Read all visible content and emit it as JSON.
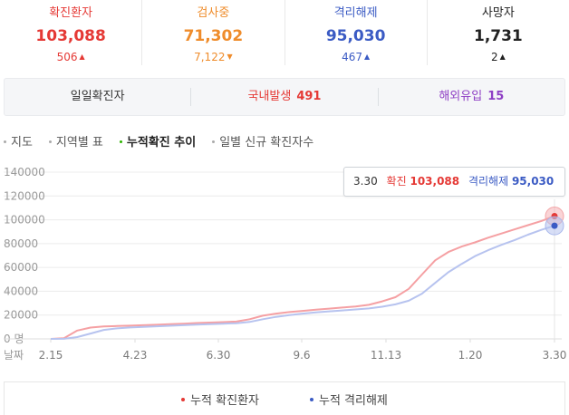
{
  "stats": [
    {
      "key": "confirmed",
      "label": "확진환자",
      "value": "103,088",
      "change": "506",
      "direction": "up",
      "color": "#e53935"
    },
    {
      "key": "tested",
      "label": "검사중",
      "value": "71,302",
      "change": "7,122",
      "direction": "down",
      "color": "#ef8c2b"
    },
    {
      "key": "released",
      "label": "격리해제",
      "value": "95,030",
      "change": "467",
      "direction": "up",
      "color": "#3b5bc4"
    },
    {
      "key": "deaths",
      "label": "사망자",
      "value": "1,731",
      "change": "2",
      "direction": "up",
      "color": "#222222"
    }
  ],
  "daily": {
    "label": "일일확진자",
    "domestic_label": "국내발생",
    "domestic_value": "491",
    "overseas_label": "해외유입",
    "overseas_value": "15",
    "domestic_color": "#e53935",
    "overseas_color": "#8e3fc4"
  },
  "tabs": [
    {
      "label": "지도",
      "active": false
    },
    {
      "label": "지역별 표",
      "active": false
    },
    {
      "label": "누적확진 추이",
      "active": true
    },
    {
      "label": "일별 신규 확진자수",
      "active": false
    }
  ],
  "chart_data": {
    "type": "line",
    "y_unit_label": "0 명",
    "x_axis_label": "날짜",
    "yticks": [
      0,
      20000,
      40000,
      60000,
      80000,
      100000,
      120000,
      140000
    ],
    "ytick_labels": [
      "20000",
      "40000",
      "60000",
      "80000",
      "100000",
      "120000",
      "140000"
    ],
    "ylim": [
      0,
      140000
    ],
    "x_ticks": [
      "2.15",
      "4.23",
      "6.30",
      "9.6",
      "11.13",
      "1.20",
      "3.30"
    ],
    "series": [
      {
        "name": "누적 확진환자",
        "color": "#f5a0a3",
        "values": [
          0,
          600,
          7000,
          9500,
          10500,
          10800,
          11100,
          11500,
          11900,
          12300,
          12800,
          13300,
          13700,
          14100,
          14500,
          16500,
          19500,
          21200,
          22500,
          23500,
          24500,
          25400,
          26300,
          27200,
          28600,
          31500,
          35000,
          42000,
          54000,
          66000,
          73000,
          77500,
          81000,
          85000,
          88500,
          92000,
          95500,
          99000,
          103088
        ]
      },
      {
        "name": "누적 격리해제",
        "color": "#b7c3ef",
        "values": [
          0,
          100,
          1500,
          4500,
          7500,
          8800,
          9600,
          10100,
          10600,
          11000,
          11500,
          12000,
          12400,
          12800,
          13200,
          14200,
          16500,
          18500,
          20000,
          21200,
          22200,
          23100,
          23900,
          24700,
          25600,
          27000,
          29000,
          32000,
          38000,
          47000,
          56000,
          63000,
          69500,
          74500,
          79000,
          83000,
          87500,
          91500,
          95030
        ]
      }
    ],
    "tooltip": {
      "date": "3.30",
      "confirmed_label": "확진",
      "confirmed_value": "103,088",
      "released_label": "격리해제",
      "released_value": "95,030"
    },
    "grid": true
  },
  "legend": [
    {
      "label": "누적 확진환자",
      "color": "#e53935"
    },
    {
      "label": "누적 격리해제",
      "color": "#3b5bc4"
    }
  ]
}
